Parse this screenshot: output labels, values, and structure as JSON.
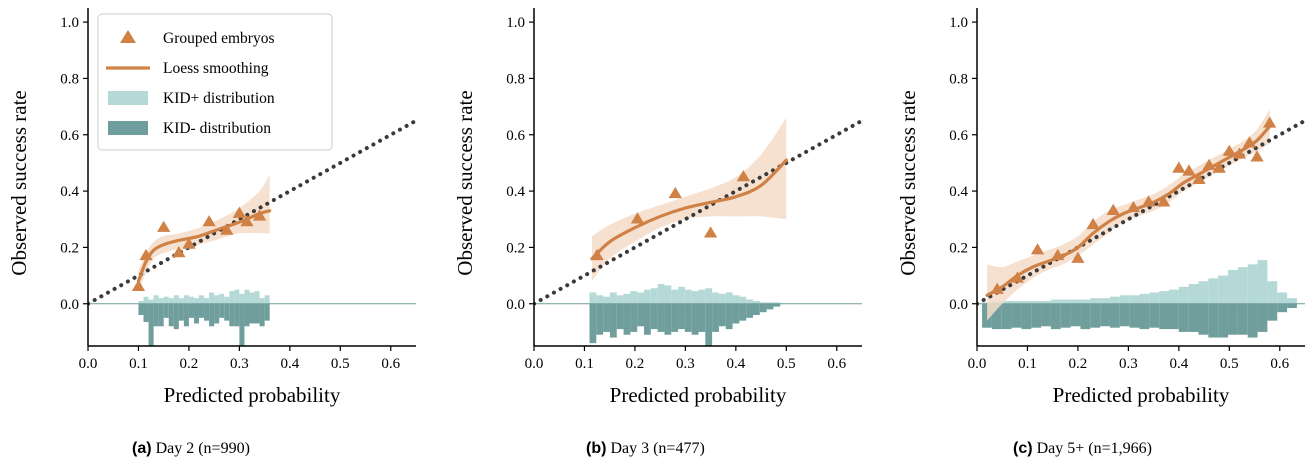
{
  "colors": {
    "orange": "#CF8146",
    "band": "#F5DCC9",
    "kid_plus": "#B5D9D7",
    "kid_minus": "#6F9E9C",
    "diagonal": "#3A3A3A"
  },
  "legend": {
    "items": [
      {
        "label": "Grouped embryos",
        "icon": "triangle-marker"
      },
      {
        "label": "Loess smoothing",
        "icon": "line"
      },
      {
        "label": "KID+ distribution",
        "icon": "light-teal-patch"
      },
      {
        "label": "KID- distribution",
        "icon": "dark-teal-patch"
      }
    ]
  },
  "captions": [
    {
      "label": "(a)",
      "text": " Day 2 (n=990)"
    },
    {
      "label": "(b)",
      "text": " Day 3 (n=477)"
    },
    {
      "label": "(c)",
      "text": " Day 5+ (n=1,966)"
    }
  ],
  "chart_data": [
    {
      "type": "scatter",
      "title": "",
      "xlabel": "Predicted probability",
      "ylabel": "Observed success rate",
      "xlim": [
        0,
        0.65
      ],
      "ylim": [
        -0.15,
        1.05
      ],
      "xticks": [
        "0.0",
        "0.1",
        "0.2",
        "0.3",
        "0.4",
        "0.5",
        "0.6"
      ],
      "yticks": [
        "0.0",
        "0.2",
        "0.4",
        "0.6",
        "0.8",
        "1.0"
      ],
      "grid": false,
      "legend": "top-left",
      "reference_line": {
        "x": [
          0,
          0.65
        ],
        "y": [
          0,
          0.65
        ],
        "style": "dotted"
      },
      "grouped_embryos": {
        "x": [
          0.1,
          0.115,
          0.15,
          0.18,
          0.2,
          0.24,
          0.275,
          0.3,
          0.315,
          0.34
        ],
        "y": [
          0.06,
          0.17,
          0.27,
          0.18,
          0.21,
          0.29,
          0.26,
          0.32,
          0.29,
          0.31
        ]
      },
      "loess": {
        "x": [
          0.1,
          0.115,
          0.13,
          0.15,
          0.18,
          0.22,
          0.26,
          0.3,
          0.34,
          0.36
        ],
        "y": [
          0.08,
          0.15,
          0.19,
          0.21,
          0.225,
          0.24,
          0.265,
          0.29,
          0.32,
          0.33
        ],
        "upper": [
          0.12,
          0.18,
          0.22,
          0.24,
          0.25,
          0.27,
          0.3,
          0.34,
          0.4,
          0.46
        ],
        "lower": [
          0.04,
          0.11,
          0.16,
          0.18,
          0.195,
          0.21,
          0.23,
          0.25,
          0.25,
          0.25
        ]
      },
      "kid_plus_distribution": {
        "bin_start": 0.1,
        "bin_width": 0.01,
        "values": [
          0.01,
          0.025,
          0.015,
          0.03,
          0.02,
          0.025,
          0.02,
          0.03,
          0.02,
          0.03,
          0.025,
          0.02,
          0.03,
          0.02,
          0.04,
          0.03,
          0.035,
          0.025,
          0.045,
          0.05,
          0.035,
          0.05,
          0.04,
          0.045,
          0.02,
          0.03
        ]
      },
      "kid_minus_distribution": {
        "bin_start": 0.1,
        "bin_width": 0.01,
        "values": [
          0.04,
          0.065,
          0.18,
          0.08,
          0.08,
          0.05,
          0.08,
          0.09,
          0.06,
          0.08,
          0.05,
          0.07,
          0.05,
          0.06,
          0.08,
          0.07,
          0.05,
          0.06,
          0.08,
          0.08,
          0.18,
          0.08,
          0.07,
          0.07,
          0.08,
          0.06
        ]
      }
    },
    {
      "type": "scatter",
      "title": "",
      "xlabel": "Predicted probability",
      "ylabel": "Observed success rate",
      "xlim": [
        0,
        0.65
      ],
      "ylim": [
        -0.15,
        1.05
      ],
      "xticks": [
        "0.0",
        "0.1",
        "0.2",
        "0.3",
        "0.4",
        "0.5",
        "0.6"
      ],
      "yticks": [
        "0.0",
        "0.2",
        "0.4",
        "0.6",
        "0.8",
        "1.0"
      ],
      "grid": false,
      "reference_line": {
        "x": [
          0,
          0.65
        ],
        "y": [
          0,
          0.65
        ],
        "style": "dotted"
      },
      "grouped_embryos": {
        "x": [
          0.125,
          0.205,
          0.28,
          0.35,
          0.415
        ],
        "y": [
          0.17,
          0.3,
          0.39,
          0.25,
          0.45
        ]
      },
      "loess": {
        "x": [
          0.115,
          0.15,
          0.2,
          0.25,
          0.3,
          0.35,
          0.4,
          0.45,
          0.5
        ],
        "y": [
          0.16,
          0.22,
          0.27,
          0.31,
          0.34,
          0.36,
          0.38,
          0.42,
          0.51
        ],
        "upper": [
          0.24,
          0.28,
          0.32,
          0.35,
          0.38,
          0.41,
          0.45,
          0.53,
          0.66
        ],
        "lower": [
          0.08,
          0.16,
          0.22,
          0.27,
          0.3,
          0.31,
          0.31,
          0.31,
          0.3
        ]
      },
      "kid_plus_distribution": {
        "bin_start": 0.11,
        "bin_width": 0.0135,
        "values": [
          0.04,
          0.03,
          0.025,
          0.04,
          0.03,
          0.035,
          0.045,
          0.04,
          0.05,
          0.055,
          0.07,
          0.065,
          0.05,
          0.06,
          0.05,
          0.045,
          0.05,
          0.055,
          0.04,
          0.035,
          0.04,
          0.03,
          0.025,
          0.015,
          0.01,
          0.005,
          0.005,
          0.005
        ]
      },
      "kid_minus_distribution": {
        "bin_start": 0.11,
        "bin_width": 0.0135,
        "values": [
          0.14,
          0.11,
          0.1,
          0.12,
          0.09,
          0.11,
          0.1,
          0.08,
          0.11,
          0.09,
          0.1,
          0.11,
          0.1,
          0.09,
          0.1,
          0.11,
          0.1,
          0.16,
          0.1,
          0.08,
          0.09,
          0.07,
          0.06,
          0.05,
          0.04,
          0.03,
          0.02,
          0.01
        ]
      }
    },
    {
      "type": "scatter",
      "title": "",
      "xlabel": "Predicted probability",
      "ylabel": "Observed success rate",
      "xlim": [
        0,
        0.65
      ],
      "ylim": [
        -0.15,
        1.05
      ],
      "xticks": [
        "0.0",
        "0.1",
        "0.2",
        "0.3",
        "0.4",
        "0.5",
        "0.6"
      ],
      "yticks": [
        "0.0",
        "0.2",
        "0.4",
        "0.6",
        "0.8",
        "1.0"
      ],
      "grid": false,
      "reference_line": {
        "x": [
          0,
          0.65
        ],
        "y": [
          0,
          0.65
        ],
        "style": "dotted"
      },
      "grouped_embryos": {
        "x": [
          0.04,
          0.08,
          0.12,
          0.16,
          0.2,
          0.23,
          0.27,
          0.31,
          0.34,
          0.37,
          0.4,
          0.42,
          0.44,
          0.46,
          0.48,
          0.5,
          0.52,
          0.54,
          0.555,
          0.58
        ],
        "y": [
          0.05,
          0.09,
          0.19,
          0.17,
          0.16,
          0.28,
          0.33,
          0.34,
          0.36,
          0.36,
          0.48,
          0.47,
          0.44,
          0.49,
          0.48,
          0.54,
          0.53,
          0.57,
          0.52,
          0.64
        ]
      },
      "loess": {
        "x": [
          0.02,
          0.05,
          0.08,
          0.11,
          0.14,
          0.17,
          0.2,
          0.23,
          0.26,
          0.29,
          0.32,
          0.35,
          0.38,
          0.41,
          0.44,
          0.47,
          0.5,
          0.53,
          0.555,
          0.58
        ],
        "y": [
          0.03,
          0.06,
          0.1,
          0.13,
          0.15,
          0.17,
          0.2,
          0.25,
          0.29,
          0.32,
          0.34,
          0.36,
          0.39,
          0.43,
          0.46,
          0.49,
          0.52,
          0.55,
          0.58,
          0.63
        ],
        "upper": [
          0.14,
          0.13,
          0.15,
          0.17,
          0.19,
          0.21,
          0.24,
          0.29,
          0.33,
          0.35,
          0.37,
          0.39,
          0.42,
          0.46,
          0.49,
          0.52,
          0.55,
          0.58,
          0.62,
          0.69
        ],
        "lower": [
          -0.06,
          0.0,
          0.05,
          0.09,
          0.12,
          0.14,
          0.17,
          0.21,
          0.25,
          0.29,
          0.31,
          0.33,
          0.36,
          0.4,
          0.43,
          0.46,
          0.49,
          0.52,
          0.54,
          0.57
        ]
      },
      "kid_plus_distribution": {
        "bin_start": 0.01,
        "bin_width": 0.0195,
        "values": [
          0.005,
          0.01,
          0.01,
          0.01,
          0.01,
          0.01,
          0.01,
          0.015,
          0.015,
          0.015,
          0.015,
          0.02,
          0.02,
          0.025,
          0.03,
          0.03,
          0.035,
          0.04,
          0.045,
          0.05,
          0.06,
          0.07,
          0.08,
          0.09,
          0.1,
          0.12,
          0.13,
          0.14,
          0.155,
          0.08,
          0.04,
          0.02
        ]
      },
      "kid_minus_distribution": {
        "bin_start": 0.01,
        "bin_width": 0.0195,
        "values": [
          0.085,
          0.09,
          0.09,
          0.085,
          0.09,
          0.085,
          0.08,
          0.09,
          0.085,
          0.08,
          0.09,
          0.085,
          0.08,
          0.085,
          0.08,
          0.085,
          0.09,
          0.085,
          0.09,
          0.09,
          0.1,
          0.1,
          0.11,
          0.12,
          0.12,
          0.11,
          0.11,
          0.12,
          0.1,
          0.06,
          0.03,
          0.015
        ]
      }
    }
  ]
}
